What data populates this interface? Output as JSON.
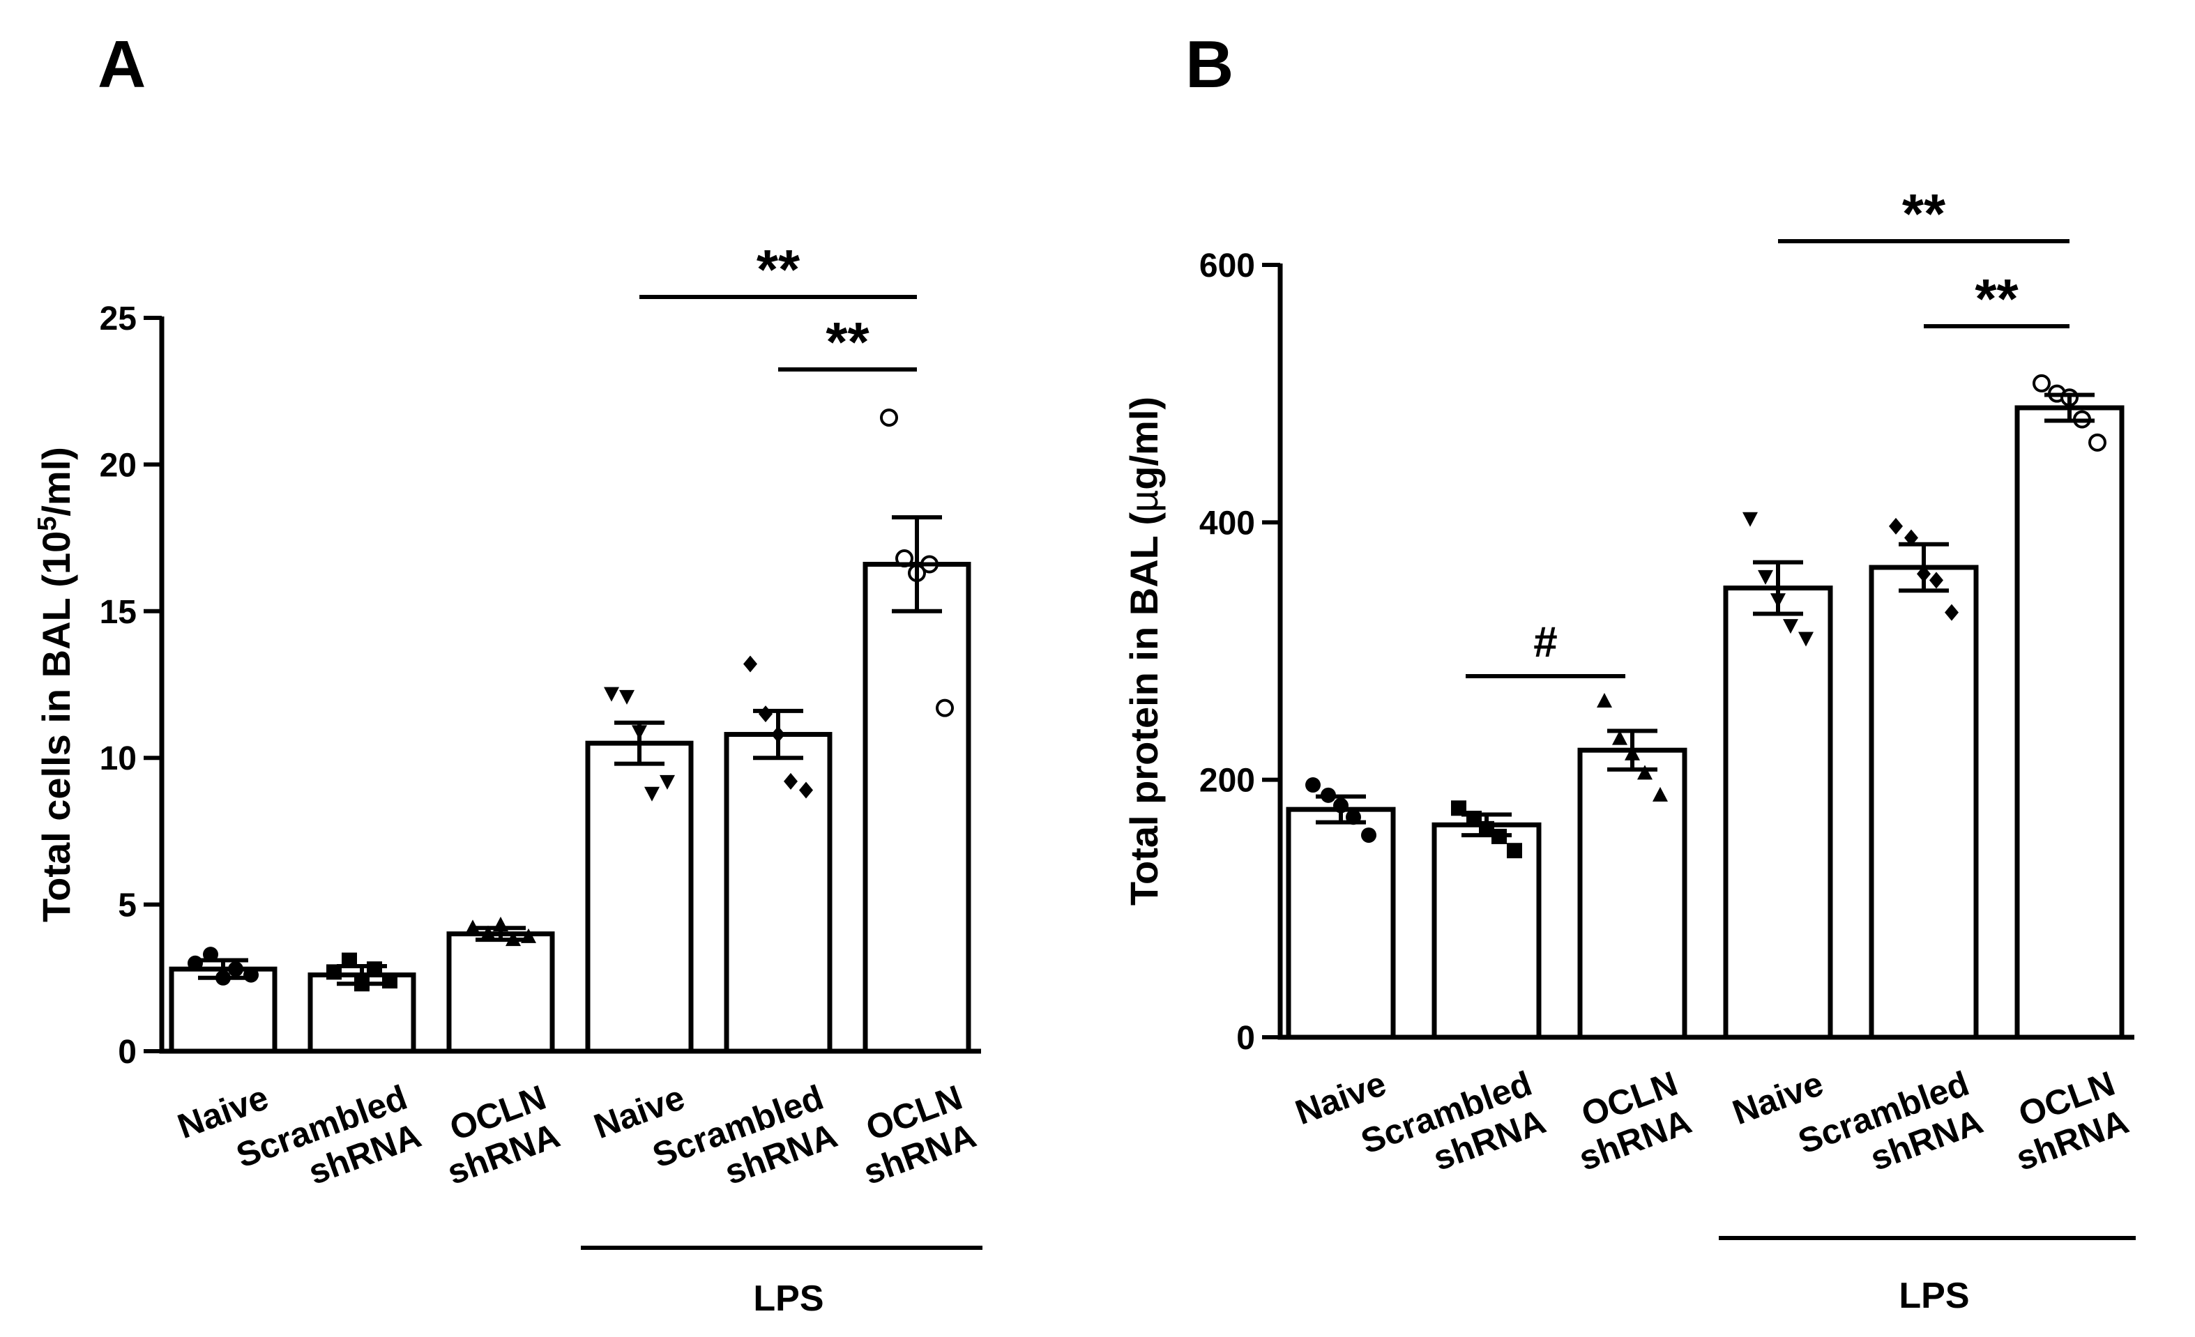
{
  "chart_data": [
    {
      "panel": "A",
      "type": "bar",
      "ylabel_main": "Total cells in BAL (10",
      "ylabel_sup": "5",
      "ylabel_end": "/ml)",
      "ylim": [
        0,
        25
      ],
      "yticks": [
        "0",
        "5",
        "10",
        "15",
        "20",
        "25"
      ],
      "categories": [
        "Naive",
        "Scrambled shRNA",
        "OCLN shRNA",
        "Naive",
        "Scrambled shRNA",
        "OCLN shRNA"
      ],
      "category_lines": [
        [
          "Naive"
        ],
        [
          "Scrambled",
          "shRNA"
        ],
        [
          "OCLN",
          "shRNA"
        ],
        [
          "Naive"
        ],
        [
          "Scrambled",
          "shRNA"
        ],
        [
          "OCLN",
          "shRNA"
        ]
      ],
      "group_label": "LPS",
      "group_span": [
        3,
        5
      ],
      "means": [
        2.8,
        2.6,
        4.0,
        10.5,
        10.8,
        16.6
      ],
      "sem": [
        0.3,
        0.3,
        0.2,
        0.7,
        0.8,
        1.6
      ],
      "markers": [
        "circle",
        "square",
        "triangle-up",
        "triangle-down",
        "diamond",
        "open-circle"
      ],
      "points": [
        [
          3.0,
          3.3,
          2.5,
          2.8,
          2.6
        ],
        [
          2.7,
          3.1,
          2.3,
          2.8,
          2.4
        ],
        [
          4.2,
          4.0,
          4.3,
          3.8,
          3.9
        ],
        [
          12.2,
          12.1,
          10.9,
          8.8,
          9.2
        ],
        [
          13.2,
          11.5,
          10.8,
          9.2,
          8.9
        ],
        [
          21.6,
          16.8,
          16.3,
          16.6,
          11.7
        ]
      ],
      "significance": [
        {
          "from": 3,
          "to": 5,
          "label": "**"
        },
        {
          "from": 4,
          "to": 5,
          "label": "**"
        }
      ]
    },
    {
      "panel": "B",
      "type": "bar",
      "ylabel_main": "Total protein in BAL (",
      "ylabel_mu": "µ",
      "ylabel_end": "g/ml)",
      "ylim": [
        0,
        600
      ],
      "yticks": [
        "0",
        "200",
        "400",
        "600"
      ],
      "categories": [
        "Naive",
        "Scrambled shRNA",
        "OCLN shRNA",
        "Naive",
        "Scrambled shRNA",
        "OCLN shRNA"
      ],
      "category_lines": [
        [
          "Naive"
        ],
        [
          "Scrambled",
          "shRNA"
        ],
        [
          "OCLN",
          "shRNA"
        ],
        [
          "Naive"
        ],
        [
          "Scrambled",
          "shRNA"
        ],
        [
          "OCLN",
          "shRNA"
        ]
      ],
      "group_label": "LPS",
      "group_span": [
        3,
        5
      ],
      "means": [
        177,
        165,
        223,
        349,
        365,
        489
      ],
      "sem": [
        10,
        8,
        15,
        20,
        18,
        10
      ],
      "markers": [
        "circle",
        "square",
        "triangle-up",
        "triangle-down",
        "diamond",
        "open-circle"
      ],
      "points": [
        [
          196,
          188,
          180,
          171,
          157
        ],
        [
          178,
          170,
          162,
          156,
          145
        ],
        [
          261,
          232,
          220,
          205,
          188
        ],
        [
          403,
          358,
          340,
          320,
          310
        ],
        [
          397,
          388,
          360,
          355,
          330
        ],
        [
          508,
          500,
          497,
          480,
          462
        ]
      ],
      "significance": [
        {
          "from": 3,
          "to": 5,
          "label": "**"
        },
        {
          "from": 4,
          "to": 5,
          "label": "**"
        },
        {
          "from": 1,
          "to": 2,
          "label": "#"
        }
      ]
    }
  ]
}
